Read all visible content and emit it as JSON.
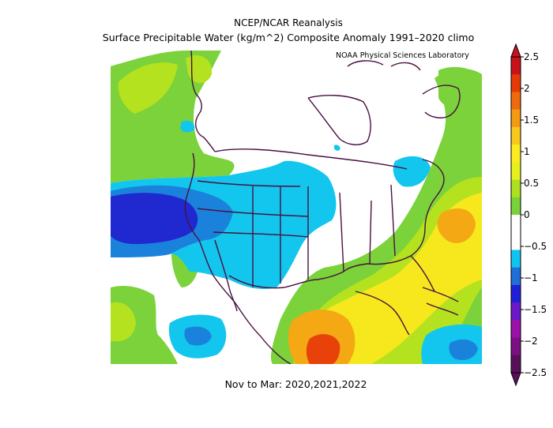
{
  "title_line1": "NCEP/NCAR Reanalysis",
  "title_line2": "Surface Precipitable Water (kg/m^2) Composite Anomaly 1991–2020 climo",
  "credit": "NOAA Physical Sciences Laboratory",
  "footer": "Nov to Mar: 2020,2021,2022",
  "colorbar": {
    "ticks": [
      "2.5",
      "2",
      "1.5",
      "1",
      "0.5",
      "0",
      "−0.5",
      "−1",
      "−1.5",
      "−2",
      "−2.5"
    ],
    "colors": [
      "#5a0f5a",
      "#7d0f85",
      "#9a10a8",
      "#6a18c8",
      "#2020d8",
      "#1f6fd6",
      "#10c4ee",
      "#ffffff",
      "#ffffff",
      "#7ad23a",
      "#aee021",
      "#e6f01d",
      "#fdea20",
      "#f8c81c",
      "#f39a14",
      "#ee6a0c",
      "#e53a08",
      "#c8121a"
    ]
  },
  "colors": {
    "coastline": "#4a1040",
    "positive_light": "#7bd23a",
    "positive_yellowgreen": "#b4e21f",
    "positive_yellow": "#f6e81d",
    "positive_orange": "#f4a814",
    "positive_red": "#e8420a",
    "negative_light": "#12c6ee",
    "negative_medium": "#1b82dc",
    "negative_dark": "#2028d0"
  }
}
